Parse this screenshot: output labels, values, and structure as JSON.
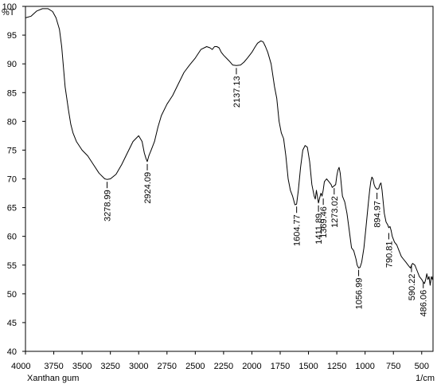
{
  "chart_data": {
    "type": "line",
    "ylabel": "%T",
    "xlabel_left": "Xanthan gum",
    "xlabel_right": "1/cm",
    "xlim": [
      4000,
      400
    ],
    "ylim": [
      40,
      100
    ],
    "x_ticks": [
      4000,
      3750,
      3500,
      3250,
      3000,
      2750,
      2500,
      2250,
      2000,
      1750,
      1500,
      1250,
      1000,
      750,
      500
    ],
    "y_ticks": [
      40,
      45,
      50,
      55,
      60,
      65,
      70,
      75,
      80,
      85,
      90,
      95,
      100
    ],
    "series": [
      {
        "x": [
          4000,
          3950,
          3900,
          3850,
          3800,
          3760,
          3730,
          3700,
          3680,
          3650,
          3620,
          3600,
          3580,
          3550,
          3500,
          3450,
          3400,
          3350,
          3300,
          3280,
          3250,
          3200,
          3150,
          3100,
          3050,
          3000,
          2970,
          2950,
          2935,
          2924,
          2910,
          2890,
          2860,
          2830,
          2800,
          2750,
          2700,
          2650,
          2600,
          2550,
          2500,
          2450,
          2400,
          2370,
          2350,
          2330,
          2310,
          2290,
          2270,
          2250,
          2200,
          2170,
          2137,
          2100,
          2070,
          2040,
          2000,
          1970,
          1950,
          1920,
          1900,
          1880,
          1860,
          1830,
          1800,
          1780,
          1760,
          1740,
          1720,
          1700,
          1680,
          1660,
          1640,
          1620,
          1605,
          1590,
          1570,
          1550,
          1530,
          1510,
          1490,
          1470,
          1450,
          1440,
          1430,
          1412,
          1400,
          1390,
          1380,
          1370,
          1360,
          1340,
          1320,
          1300,
          1290,
          1273,
          1260,
          1250,
          1240,
          1230,
          1220,
          1210,
          1200,
          1180,
          1160,
          1140,
          1120,
          1100,
          1080,
          1070,
          1057,
          1045,
          1030,
          1010,
          990,
          970,
          960,
          950,
          940,
          930,
          920,
          910,
          895,
          880,
          870,
          860,
          850,
          840,
          830,
          815,
          800,
          791,
          780,
          770,
          760,
          740,
          720,
          700,
          680,
          660,
          640,
          620,
          600,
          590,
          580,
          560,
          540,
          520,
          500,
          486,
          475,
          465,
          455,
          445,
          435,
          425,
          415,
          405,
          400
        ],
        "y": [
          98.0,
          98.3,
          99.2,
          99.6,
          99.6,
          99.1,
          98.0,
          96.0,
          93.0,
          86.0,
          82.0,
          79.5,
          78.0,
          76.5,
          75.0,
          74.0,
          72.5,
          71.0,
          70.0,
          69.9,
          70.0,
          70.8,
          72.5,
          74.5,
          76.5,
          77.5,
          76.5,
          74.5,
          73.5,
          73.0,
          74.0,
          75.0,
          76.5,
          79.0,
          81.0,
          83.0,
          84.5,
          86.5,
          88.5,
          89.8,
          91.0,
          92.5,
          93.0,
          92.8,
          92.5,
          93.0,
          93.0,
          92.8,
          92.0,
          91.5,
          90.5,
          89.8,
          89.7,
          89.8,
          90.3,
          91.0,
          92.0,
          93.0,
          93.6,
          94.0,
          93.8,
          93.0,
          92.0,
          90.0,
          86.0,
          84.0,
          80.0,
          78.0,
          77.0,
          74.0,
          70.0,
          68.0,
          67.0,
          65.5,
          65.6,
          68.0,
          72.0,
          75.0,
          75.8,
          75.5,
          73.0,
          69.0,
          67.0,
          66.5,
          68.0,
          65.8,
          66.8,
          67.5,
          67.0,
          68.0,
          69.5,
          70.0,
          69.5,
          69.0,
          68.5,
          68.8,
          69.0,
          70.5,
          71.5,
          72.0,
          71.0,
          69.0,
          67.0,
          66.0,
          64.0,
          61.0,
          58.0,
          57.5,
          56.0,
          55.0,
          54.5,
          54.6,
          55.5,
          58.0,
          62.0,
          66.0,
          68.0,
          69.5,
          70.3,
          70.0,
          69.0,
          68.5,
          68.2,
          68.3,
          69.0,
          69.3,
          68.0,
          66.0,
          64.0,
          62.5,
          62.0,
          61.5,
          61.7,
          61.0,
          60.0,
          59.0,
          58.5,
          57.5,
          56.5,
          56.0,
          55.5,
          55.0,
          54.5,
          55.0,
          55.3,
          55.0,
          54.0,
          53.0,
          52.5,
          52.0,
          51.8,
          52.5,
          53.5,
          52.5,
          53.0,
          51.5,
          53.0,
          52.5,
          53.2
        ]
      }
    ],
    "annotations": [
      {
        "x": 3278.99,
        "y": 69.9,
        "label": "3278.99"
      },
      {
        "x": 2924.09,
        "y": 73.0,
        "label": "2924.09"
      },
      {
        "x": 2137.13,
        "y": 89.7,
        "label": "2137.13"
      },
      {
        "x": 1604.77,
        "y": 65.6,
        "label": "1604.77"
      },
      {
        "x": 1411.89,
        "y": 65.8,
        "label": "1411.89"
      },
      {
        "x": 1369.46,
        "y": 67.0,
        "label": "1369.46"
      },
      {
        "x": 1273.02,
        "y": 68.8,
        "label": "1273.02"
      },
      {
        "x": 1056.99,
        "y": 54.6,
        "label": "1056.99"
      },
      {
        "x": 894.97,
        "y": 68.0,
        "label": "894.97"
      },
      {
        "x": 790.81,
        "y": 61.0,
        "label": "790.81"
      },
      {
        "x": 590.22,
        "y": 55.3,
        "label": "590.22"
      },
      {
        "x": 486.06,
        "y": 52.5,
        "label": "486.06"
      }
    ]
  }
}
